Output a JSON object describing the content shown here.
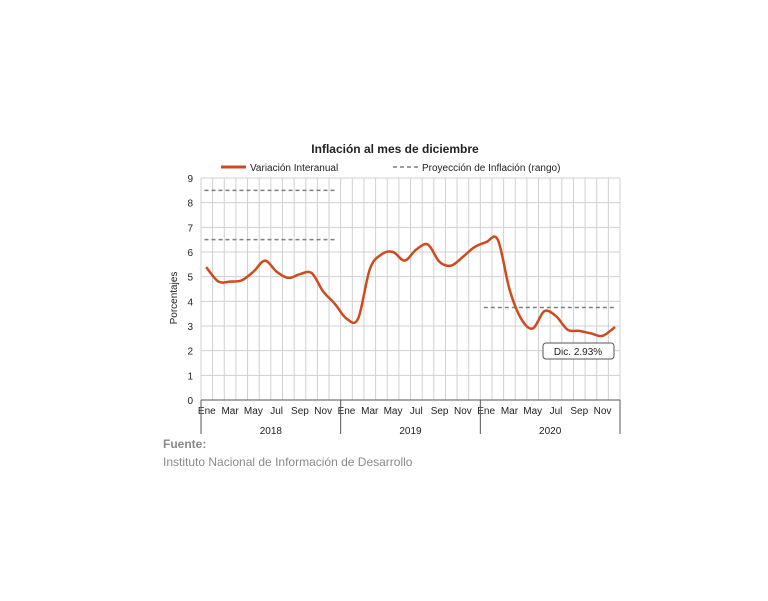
{
  "chart_data": {
    "type": "line",
    "title": "Inflación al mes de diciembre",
    "ylabel": "Porcentajes",
    "ylim": [
      0,
      9
    ],
    "yticks": [
      0,
      1,
      2,
      3,
      4,
      5,
      6,
      7,
      8,
      9
    ],
    "grid": true,
    "legend_position": "top",
    "month_labels": [
      "Ene",
      "Mar",
      "May",
      "Jul",
      "Sep",
      "Nov",
      "Ene",
      "Mar",
      "May",
      "Jul",
      "Sep",
      "Nov",
      "Ene",
      "Mar",
      "May",
      "Jul",
      "Sep",
      "Nov"
    ],
    "years": [
      "2018",
      "2019",
      "2020"
    ],
    "series": [
      {
        "name": "Variación Interanual",
        "color": "#d04a1f",
        "style": "solid",
        "values": [
          5.35,
          4.8,
          4.8,
          4.85,
          5.2,
          5.65,
          5.2,
          4.95,
          5.1,
          5.15,
          4.4,
          3.9,
          3.3,
          3.3,
          5.3,
          5.9,
          6.0,
          5.65,
          6.1,
          6.3,
          5.6,
          5.45,
          5.8,
          6.2,
          6.4,
          6.5,
          4.5,
          3.3,
          2.9,
          3.6,
          3.4,
          2.85,
          2.8,
          2.7,
          2.6,
          2.93
        ]
      },
      {
        "name": "Proyección de Inflación (rango)",
        "color": "#7f7f7f",
        "style": "dashed",
        "segments": [
          {
            "from": "Ene 2018",
            "to": "Dic 2018",
            "lower": 6.5,
            "upper": 8.5
          },
          {
            "from": "Ene 2020",
            "to": "Dic 2020",
            "lower": null,
            "upper": 3.75
          }
        ]
      }
    ],
    "annotation": {
      "label": "Dic. 2.93%"
    }
  },
  "source": {
    "label": "Fuente:",
    "text": "Instituto Nacional de Información de  Desarrollo"
  }
}
